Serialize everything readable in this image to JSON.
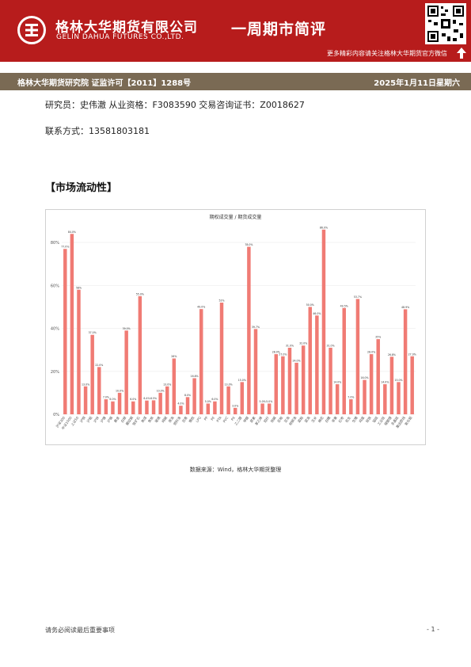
{
  "header": {
    "company_cn": "格林大华期货有限公司",
    "company_en": "GELIN DAHUA FUTURES CO.,LTD.",
    "report_title": "一周期市简评",
    "follow_text": "更多精彩内容请关注格林大华期货官方微信",
    "institute": "格林大华期货研究院   证监许可【2011】1288号",
    "date": "2025年1月11日星期六",
    "colors": {
      "banner": "#b71c1c",
      "subbar": "#7a6a54",
      "bar": "#f07b74"
    }
  },
  "meta": {
    "researcher_line": "研究员：史伟澈   从业资格：F3083590   交易咨询证书：Z0018627",
    "contact_line": "联系方式：13581803181"
  },
  "section_title": "【市场流动性】",
  "chart_data": {
    "type": "bar",
    "title": "期权成交量 / 期货成交量",
    "ylim": [
      0,
      90
    ],
    "yticks": [
      "0%",
      "20%",
      "40%",
      "60%",
      "80%"
    ],
    "grid": true,
    "values": [
      77.0,
      84.0,
      58.0,
      13.0,
      37.0,
      22.0,
      7.0,
      6.0,
      10.0,
      39.0,
      6.0,
      55.0,
      6.4,
      6.5,
      10.0,
      13.0,
      26.0,
      4.0,
      8.0,
      16.8,
      49.0,
      5.0,
      6.0,
      52.0,
      13.0,
      3.0,
      15.0,
      78.0,
      39.7,
      5.0,
      5.0,
      28.0,
      27.0,
      31.0,
      24.0,
      32.0,
      50.0,
      46.0,
      86.0,
      31.0,
      14.0,
      49.5,
      7.0,
      53.7,
      16.0,
      28.0,
      35.0,
      14.0,
      26.8,
      15.0,
      48.9,
      27.0
    ],
    "data_labels": [
      "77.0%",
      "84.0%",
      "58%",
      "13.0%",
      "37.0%",
      "22.0%",
      "7.0%",
      "6.0%",
      "10.0%",
      "39.0%",
      "6.0%",
      "55.0%",
      "6.4%",
      "6.5%",
      "10.0%",
      "13.0%",
      "26%",
      "4.0%",
      "8.0%",
      "16.8%",
      "49.0%",
      "5.0%",
      "6.0%",
      "52%",
      "13.0%",
      "3.0%",
      "15.0%",
      "78.0%",
      "39.7%",
      "5.0%",
      "5.0%",
      "28.0%",
      "27.0%",
      "31.0%",
      "24.0%",
      "32.0%",
      "50.0%",
      "46.0%",
      "86.0%",
      "31.0%",
      "14.0%",
      "49.5%",
      "7.0%",
      "53.7%",
      "16.0%",
      "28.0%",
      "35%",
      "14.0%",
      "26.8%",
      "15.0%",
      "48.9%",
      "27.0%"
    ],
    "categories": [
      "沪深300",
      "中证1000",
      "上证50",
      "沪铜",
      "沪铝",
      "沪锌",
      "沪镍",
      "沪锡",
      "黄金",
      "白银",
      "螺纹钢",
      "铁矿石",
      "焦煤",
      "焦炭",
      "玻璃",
      "纯碱",
      "原油",
      "燃料油",
      "沥青",
      "橡胶",
      "LPG",
      "PP",
      "PE",
      "PTA",
      "PVC",
      "PX",
      "乙二醇",
      "甲醇",
      "尿素",
      "苯乙烯",
      "短纤",
      "烧碱",
      "豆粕",
      "豆油",
      "棕榈油",
      "菜粕",
      "菜油",
      "玉米",
      "棉花",
      "白糖",
      "苹果",
      "红枣",
      "花生",
      "生猪",
      "鸡蛋",
      "硅铁",
      "锰硅",
      "工业硅",
      "碳酸锂",
      "多晶硅",
      "集运欧线",
      "氧化铝"
    ]
  },
  "source": "数据来源：Wind，格林大华期货整理",
  "footer": {
    "disclaimer": "请务必阅读最后重要事项",
    "page": "- 1 -"
  }
}
